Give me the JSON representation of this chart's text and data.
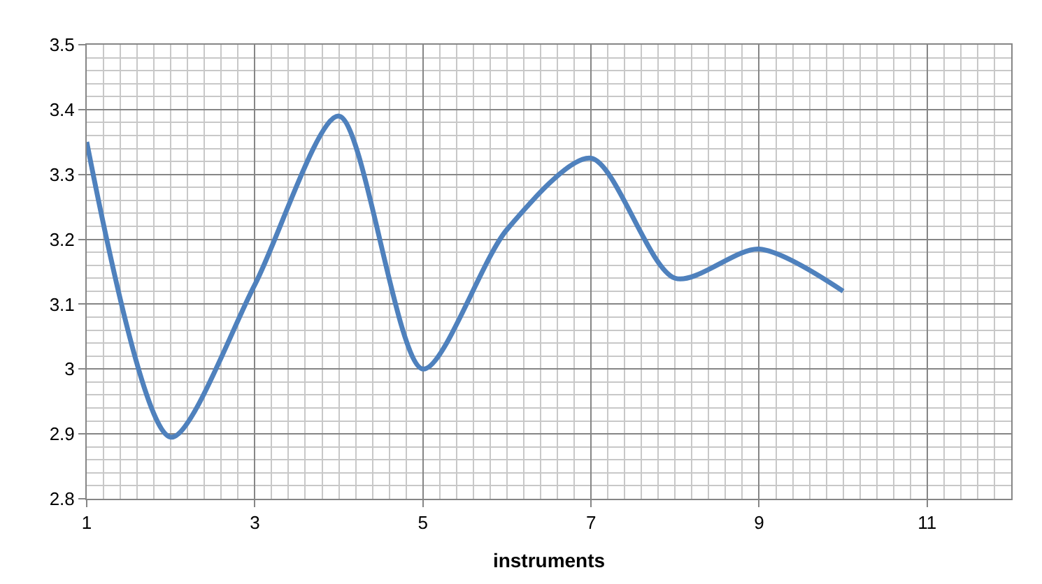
{
  "chart_data": {
    "type": "line",
    "xlabel": "instruments",
    "x": [
      1,
      2,
      3,
      4,
      5,
      6,
      7,
      8,
      9,
      10
    ],
    "series": [
      {
        "color": "#4f81bd",
        "values": [
          3.35,
          2.895,
          3.13,
          3.39,
          3.0,
          3.215,
          3.325,
          3.14,
          3.185,
          3.12
        ]
      }
    ],
    "xlim": [
      1,
      12
    ],
    "xticks": [
      1,
      3,
      5,
      7,
      9,
      11
    ],
    "ylim": [
      2.8,
      3.5
    ],
    "yticks": [
      {
        "value": 2.8,
        "label": "2.8"
      },
      {
        "value": 2.9,
        "label": "2.9"
      },
      {
        "value": 3.0,
        "label": "3"
      },
      {
        "value": 3.1,
        "label": "3.1"
      },
      {
        "value": 3.2,
        "label": "3.2"
      },
      {
        "value": 3.3,
        "label": "3.3"
      },
      {
        "value": 3.4,
        "label": "3.4"
      },
      {
        "value": 3.5,
        "label": "3.5"
      }
    ],
    "grid": true,
    "legend": false,
    "marker": "none",
    "line_style": "solid"
  }
}
